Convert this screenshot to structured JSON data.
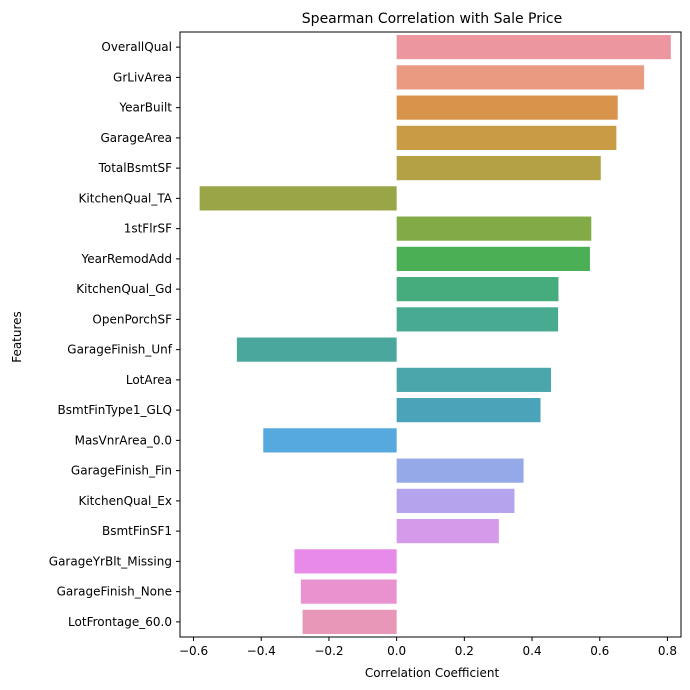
{
  "chart_data": {
    "type": "bar",
    "orientation": "horizontal",
    "title": "Spearman Correlation with Sale Price",
    "xlabel": "Correlation Coefficient",
    "ylabel": "Features",
    "xlim": [
      -0.64,
      0.84
    ],
    "xticks": [
      -0.6,
      -0.4,
      -0.2,
      0.0,
      0.2,
      0.4,
      0.6,
      0.8
    ],
    "xtick_labels": [
      "−0.6",
      "−0.4",
      "−0.2",
      "0.0",
      "0.2",
      "0.4",
      "0.6",
      "0.8"
    ],
    "grid": false,
    "categories": [
      "OverallQual",
      "GrLivArea",
      "YearBuilt",
      "GarageArea",
      "TotalBsmtSF",
      "KitchenQual_TA",
      "1stFlrSF",
      "YearRemodAdd",
      "KitchenQual_Gd",
      "OpenPorchSF",
      "GarageFinish_Unf",
      "LotArea",
      "BsmtFinType1_GLQ",
      "MasVnrArea_0.0",
      "GarageFinish_Fin",
      "KitchenQual_Ex",
      "BsmtFinSF1",
      "GarageYrBlt_Missing",
      "GarageFinish_None",
      "LotFrontage_60.0"
    ],
    "values": [
      0.81,
      0.731,
      0.653,
      0.649,
      0.603,
      -0.582,
      0.575,
      0.571,
      0.478,
      0.477,
      -0.472,
      0.456,
      0.425,
      -0.394,
      0.375,
      0.348,
      0.302,
      -0.302,
      -0.283,
      -0.278
    ],
    "colors": [
      "#ec97a0",
      "#e99a80",
      "#d9944b",
      "#c99b45",
      "#b5a145",
      "#9aa547",
      "#82aa47",
      "#4bb055",
      "#47ac7d",
      "#48aa90",
      "#49a79e",
      "#4aa6aa",
      "#4aa3b8",
      "#56a9dc",
      "#95a9e8",
      "#b5a3ed",
      "#d39be9",
      "#e88ae7",
      "#e992cf",
      "#e897b8"
    ]
  }
}
